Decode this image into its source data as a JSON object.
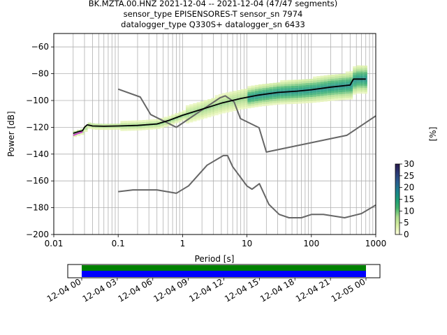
{
  "chart_data": [
    {
      "type": "line",
      "title_lines": [
        "BK.MZTA.00.HNZ   2021-12-04 -- 2021-12-04  (47/47 segments)",
        "sensor_type EPISENSORES-T sensor_sn 7974",
        "datalogger_type Q330S+ datalogger_sn 6433"
      ],
      "xlabel": "Period [s]",
      "ylabel": "Power [dB]",
      "xscale": "log",
      "xlim": [
        0.01,
        1000
      ],
      "ylim": [
        -200,
        -50
      ],
      "x_ticks": [
        0.01,
        0.1,
        1,
        10,
        100,
        1000
      ],
      "x_tick_labels": [
        "0.01",
        "0.1",
        "1",
        "10",
        "100",
        "1000"
      ],
      "y_ticks": [
        -200,
        -180,
        -160,
        -140,
        -120,
        -100,
        -80,
        -60
      ],
      "y_tick_labels": [
        "−200",
        "−180",
        "−160",
        "−140",
        "−120",
        "−100",
        "−80",
        "−60"
      ],
      "grid": true,
      "series": [
        {
          "role": "noise_model_high",
          "color": "#666666",
          "x": [
            0.1,
            0.22,
            0.32,
            0.8,
            3.8,
            4.6,
            6.3,
            7.9,
            15.4,
            20,
            354.8,
            1000
          ],
          "y": [
            -91.5,
            -97.4,
            -110.5,
            -120,
            -98,
            -96.5,
            -101,
            -113.5,
            -120.3,
            -138.5,
            -126,
            -111.5
          ]
        },
        {
          "role": "noise_model_low",
          "color": "#666666",
          "x": [
            0.1,
            0.17,
            0.4,
            0.8,
            1.24,
            2.4,
            4.3,
            5,
            6,
            10,
            12,
            15.6,
            21.9,
            31.6,
            45,
            70,
            101,
            154,
            328,
            600,
            1000
          ],
          "y": [
            -168,
            -166.7,
            -166.7,
            -169.2,
            -163.7,
            -148.3,
            -141.1,
            -141.1,
            -149.4,
            -163.8,
            -166.2,
            -162.1,
            -177.5,
            -185,
            -187.5,
            -187.5,
            -185,
            -185,
            -187.5,
            -184.4,
            -178
          ]
        },
        {
          "role": "mode",
          "color": "#000000",
          "x": [
            0.02,
            0.025,
            0.028,
            0.03,
            0.033,
            0.036,
            0.04,
            0.06,
            0.1,
            0.2,
            0.4,
            0.6,
            1,
            2,
            4,
            8,
            15,
            30,
            60,
            100,
            200,
            400,
            450,
            600,
            700
          ],
          "y": [
            -124.5,
            -123,
            -122.5,
            -120,
            -118.2,
            -118.5,
            -119,
            -119.2,
            -119,
            -118.6,
            -117.5,
            -115,
            -111,
            -106.5,
            -102,
            -98.5,
            -96,
            -94,
            -93,
            -92,
            -90,
            -88.5,
            -84,
            -84,
            -84
          ]
        },
        {
          "role": "min_trace",
          "color": "#cc44cc",
          "x": [
            0.02,
            0.024,
            0.028
          ],
          "y": [
            -126,
            -124.5,
            -123.5
          ]
        }
      ],
      "colorbar": {
        "label": "[%]",
        "min": 0,
        "max": 30,
        "ticks": [
          0,
          5,
          10,
          15,
          20,
          25,
          30
        ],
        "tick_labels": [
          "0",
          "5",
          "10",
          "15",
          "20",
          "25",
          "30"
        ],
        "colormap": [
          "#ffffe0",
          "#d9f0a3",
          "#addd8e",
          "#41b36c",
          "#1a9c78",
          "#1b7f8f",
          "#2a5c8f",
          "#2b3a75",
          "#28194d"
        ]
      }
    },
    {
      "type": "timeline",
      "x_tick_labels": [
        "12-04 00",
        "12-04 03",
        "12-04 06",
        "12-04 09",
        "12-04 12",
        "12-04 15",
        "12-04 18",
        "12-04 21",
        "12-05 00"
      ],
      "bars": [
        {
          "role": "data_available",
          "color": "#008000"
        },
        {
          "role": "psd_used",
          "color": "#0000ff"
        }
      ]
    }
  ]
}
